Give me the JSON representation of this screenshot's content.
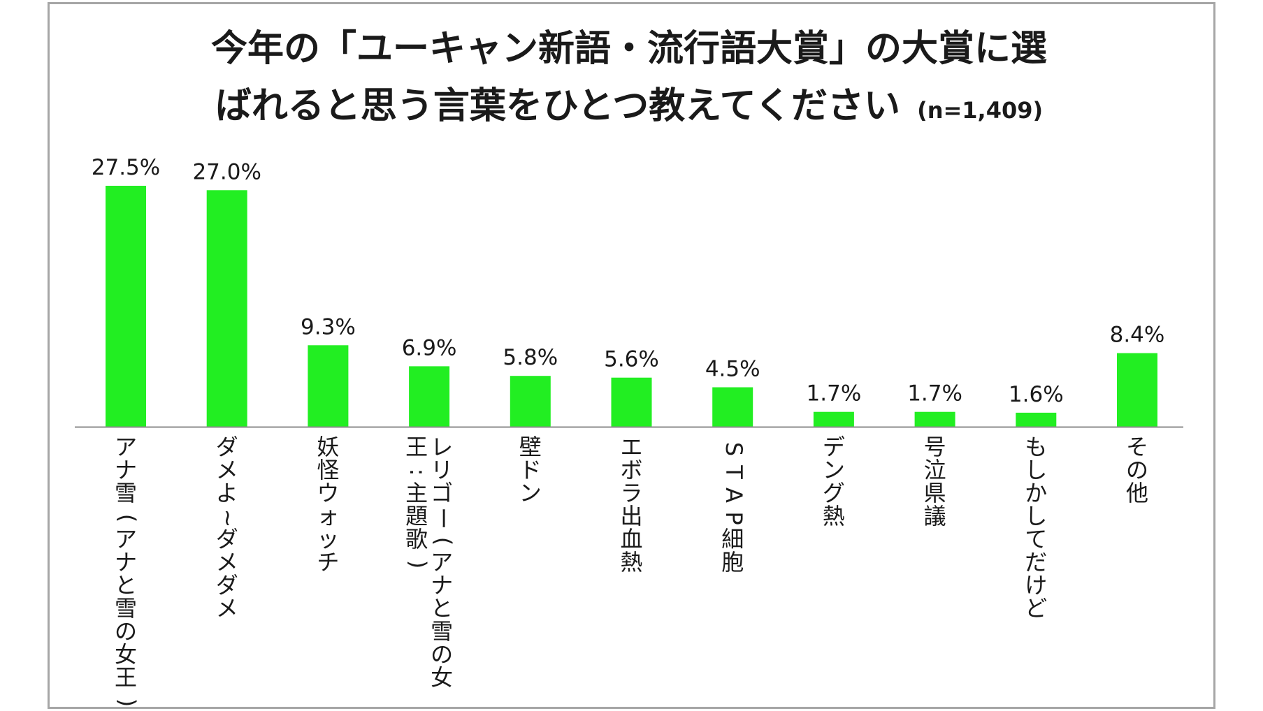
{
  "title": {
    "line1": "今年の「ユーキャン新語・流行語大賞」の大賞に選",
    "line2": "ばれると思う言葉をひとつ教えてください",
    "sample_size": "(n=1,409)"
  },
  "colors": {
    "bar": "#22ee22",
    "axis": "#8c8c8c",
    "frame": "#a6a6a6"
  },
  "chart_data": {
    "type": "bar",
    "title": "今年の「ユーキャン新語・流行語大賞」の大賞に選ばれると思う言葉をひとつ教えてください",
    "xlabel": "",
    "ylabel": "",
    "unit": "%",
    "ylim": [
      0,
      27.5
    ],
    "grid": false,
    "legend": "none",
    "categories": [
      [
        "アナ雪(アナと雪の女王)"
      ],
      [
        "ダメよ~ダメダメ"
      ],
      [
        "妖怪ウォッチ"
      ],
      [
        "レリゴー(アナと雪の女",
        "王:主題歌)"
      ],
      [
        "壁ドン"
      ],
      [
        "エボラ出血熱"
      ],
      [
        "STAP細胞"
      ],
      [
        "デング熱"
      ],
      [
        "号泣県議"
      ],
      [
        "もしかしてだけど"
      ],
      [
        "その他"
      ]
    ],
    "values": [
      27.5,
      27.0,
      9.3,
      6.9,
      5.8,
      5.6,
      4.5,
      1.7,
      1.7,
      1.6,
      8.4
    ],
    "value_labels": [
      "27.5%",
      "27.0%",
      "9.3%",
      "6.9%",
      "5.8%",
      "5.6%",
      "4.5%",
      "1.7%",
      "1.7%",
      "1.6%",
      "8.4%"
    ]
  }
}
